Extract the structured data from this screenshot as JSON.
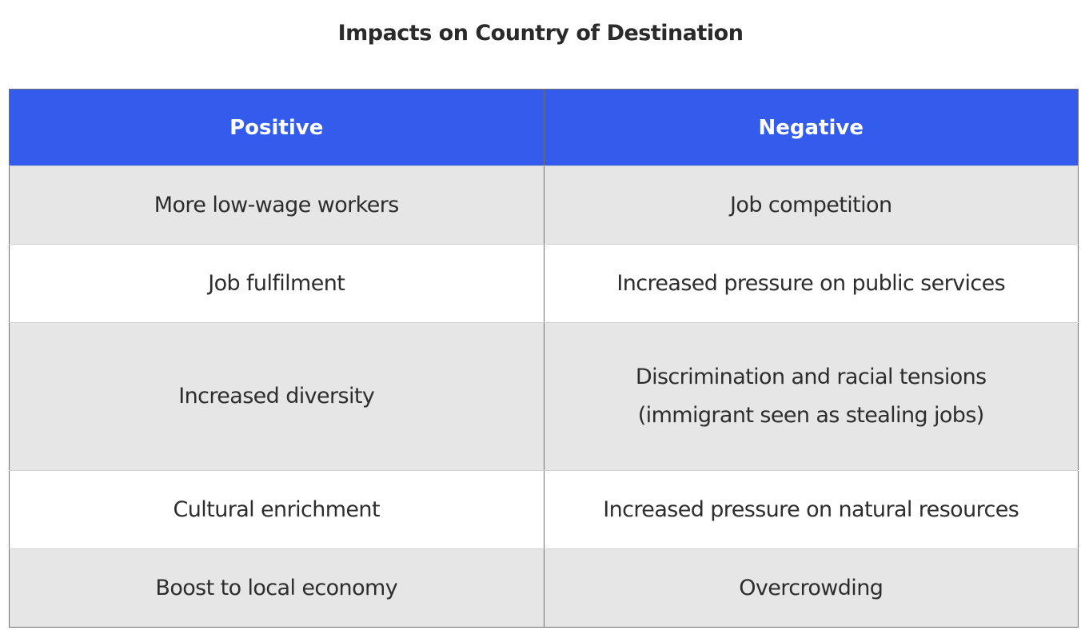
{
  "title": "Impacts on Country of Destination",
  "table": {
    "headers": [
      "Positive",
      "Negative"
    ],
    "rows": [
      {
        "positive": "More low-wage workers",
        "negative": "Job competition"
      },
      {
        "positive": "Job fulfilment",
        "negative": "Increased pressure on public services"
      },
      {
        "positive": "Increased diversity",
        "negative_line1": "Discrimination and racial tensions",
        "negative_line2": "(immigrant seen as stealing jobs)"
      },
      {
        "positive": "Cultural enrichment",
        "negative": "Increased pressure on natural resources"
      },
      {
        "positive": "Boost to local economy",
        "negative": "Overcrowding"
      }
    ]
  },
  "colors": {
    "header_bg": "#335ced",
    "shaded_row_bg": "#e6e6e6",
    "plain_row_bg": "#ffffff"
  }
}
